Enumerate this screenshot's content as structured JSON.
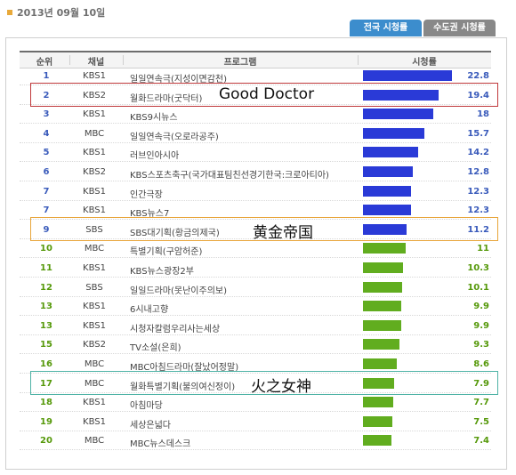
{
  "header": {
    "date": "2013년 09월 10일"
  },
  "tabs": [
    {
      "label": "전국 시청률",
      "active": true
    },
    {
      "label": "수도권 시청률",
      "active": false
    }
  ],
  "table": {
    "columns": [
      "순위",
      "채널",
      "프로그램",
      "시청률"
    ],
    "max_value": 22.8,
    "rows": [
      {
        "rank": "1",
        "channel": "KBS1",
        "program": "일일연속극(지성이면감천)",
        "value": "22.8",
        "color": "blue"
      },
      {
        "rank": "2",
        "channel": "KBS2",
        "program": "월화드라마(굿닥터)",
        "value": "19.4",
        "color": "blue"
      },
      {
        "rank": "3",
        "channel": "KBS1",
        "program": "KBS9시뉴스",
        "value": "18",
        "color": "blue"
      },
      {
        "rank": "4",
        "channel": "MBC",
        "program": "일일연속극(오로라공주)",
        "value": "15.7",
        "color": "blue"
      },
      {
        "rank": "5",
        "channel": "KBS1",
        "program": "러브인아시아",
        "value": "14.2",
        "color": "blue"
      },
      {
        "rank": "6",
        "channel": "KBS2",
        "program": "KBS스포츠축구(국가대표팀친선경기한국:크로아티아)",
        "value": "12.8",
        "color": "blue"
      },
      {
        "rank": "7",
        "channel": "KBS1",
        "program": "인간극장",
        "value": "12.3",
        "color": "blue"
      },
      {
        "rank": "7",
        "channel": "KBS1",
        "program": "KBS뉴스7",
        "value": "12.3",
        "color": "blue"
      },
      {
        "rank": "9",
        "channel": "SBS",
        "program": "SBS대기획(황금의제국)",
        "value": "11.2",
        "color": "blue"
      },
      {
        "rank": "10",
        "channel": "MBC",
        "program": "특별기획(구암허준)",
        "value": "11",
        "color": "green"
      },
      {
        "rank": "11",
        "channel": "KBS1",
        "program": "KBS뉴스광장2부",
        "value": "10.3",
        "color": "green"
      },
      {
        "rank": "12",
        "channel": "SBS",
        "program": "일일드라마(못난이주의보)",
        "value": "10.1",
        "color": "green"
      },
      {
        "rank": "13",
        "channel": "KBS1",
        "program": "6시내고향",
        "value": "9.9",
        "color": "green"
      },
      {
        "rank": "13",
        "channel": "KBS1",
        "program": "시청자칼럼우리사는세상",
        "value": "9.9",
        "color": "green"
      },
      {
        "rank": "15",
        "channel": "KBS2",
        "program": "TV소설(은희)",
        "value": "9.3",
        "color": "green"
      },
      {
        "rank": "16",
        "channel": "MBC",
        "program": "MBC아침드라마(잘났어정말)",
        "value": "8.6",
        "color": "green"
      },
      {
        "rank": "17",
        "channel": "MBC",
        "program": "월화특별기획(불의여신정이)",
        "value": "7.9",
        "color": "green"
      },
      {
        "rank": "18",
        "channel": "KBS1",
        "program": "아침마당",
        "value": "7.7",
        "color": "green"
      },
      {
        "rank": "19",
        "channel": "KBS1",
        "program": "세상은넓다",
        "value": "7.5",
        "color": "green"
      },
      {
        "rank": "20",
        "channel": "MBC",
        "program": "MBC뉴스데스크",
        "value": "7.4",
        "color": "green"
      }
    ]
  },
  "annotations": [
    {
      "text": "Good Doctor",
      "row_index": 1,
      "border_color": "#c0393b"
    },
    {
      "text": "黄金帝国",
      "row_index": 8,
      "border_color": "#e8a53a"
    },
    {
      "text": "火之女神",
      "row_index": 16,
      "border_color": "#4fb3a6"
    }
  ]
}
